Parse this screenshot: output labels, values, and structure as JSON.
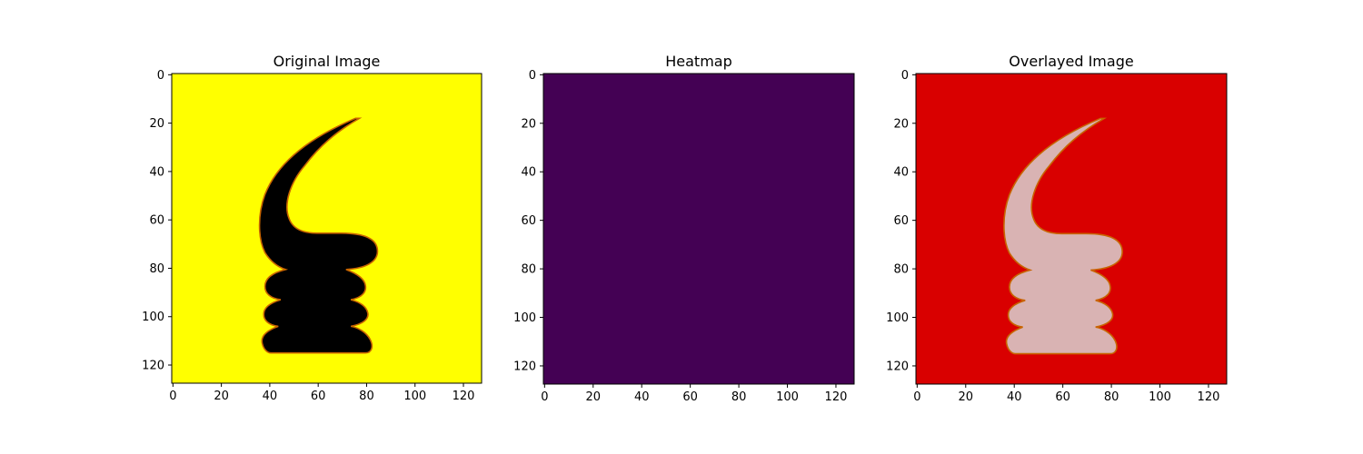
{
  "figure": {
    "colors": {
      "background": "#ffffff",
      "yellow": "#ffff00",
      "viridis_low": "#440154",
      "overlay_red": "#d90000",
      "overlay_shape": "#d9b3b3",
      "black": "#000000",
      "edge_orange": "#c86400"
    }
  },
  "chart_data": [
    {
      "type": "heatmap",
      "title": "Original Image",
      "xlabel": "",
      "ylabel": "",
      "xlim": [
        0,
        128
      ],
      "ylim": [
        128,
        0
      ],
      "x_ticks": [
        "0",
        "20",
        "40",
        "60",
        "80",
        "100",
        "120"
      ],
      "y_ticks": [
        "0",
        "20",
        "40",
        "60",
        "80",
        "100",
        "120"
      ],
      "image": {
        "background_color": "#ffff00",
        "shape_color": "#000000",
        "shape_edge_color": "#c86400",
        "shape_extent": {
          "x": [
            35,
            86
          ],
          "y": [
            18,
            116
          ]
        }
      }
    },
    {
      "type": "heatmap",
      "title": "Heatmap",
      "xlabel": "",
      "ylabel": "",
      "xlim": [
        0,
        128
      ],
      "ylim": [
        128,
        0
      ],
      "x_ticks": [
        "0",
        "20",
        "40",
        "60",
        "80",
        "100",
        "120"
      ],
      "y_ticks": [
        "0",
        "20",
        "40",
        "60",
        "80",
        "100",
        "120"
      ],
      "image": {
        "uniform_color": "#440154"
      }
    },
    {
      "type": "heatmap",
      "title": "Overlayed Image",
      "xlabel": "",
      "ylabel": "",
      "xlim": [
        0,
        128
      ],
      "ylim": [
        128,
        0
      ],
      "x_ticks": [
        "0",
        "20",
        "40",
        "60",
        "80",
        "100",
        "120"
      ],
      "y_ticks": [
        "0",
        "20",
        "40",
        "60",
        "80",
        "100",
        "120"
      ],
      "image": {
        "background_color": "#d90000",
        "shape_color": "#d9b3b3",
        "shape_edge_color": "#c86400",
        "shape_extent": {
          "x": [
            35,
            86
          ],
          "y": [
            18,
            116
          ]
        }
      }
    }
  ]
}
